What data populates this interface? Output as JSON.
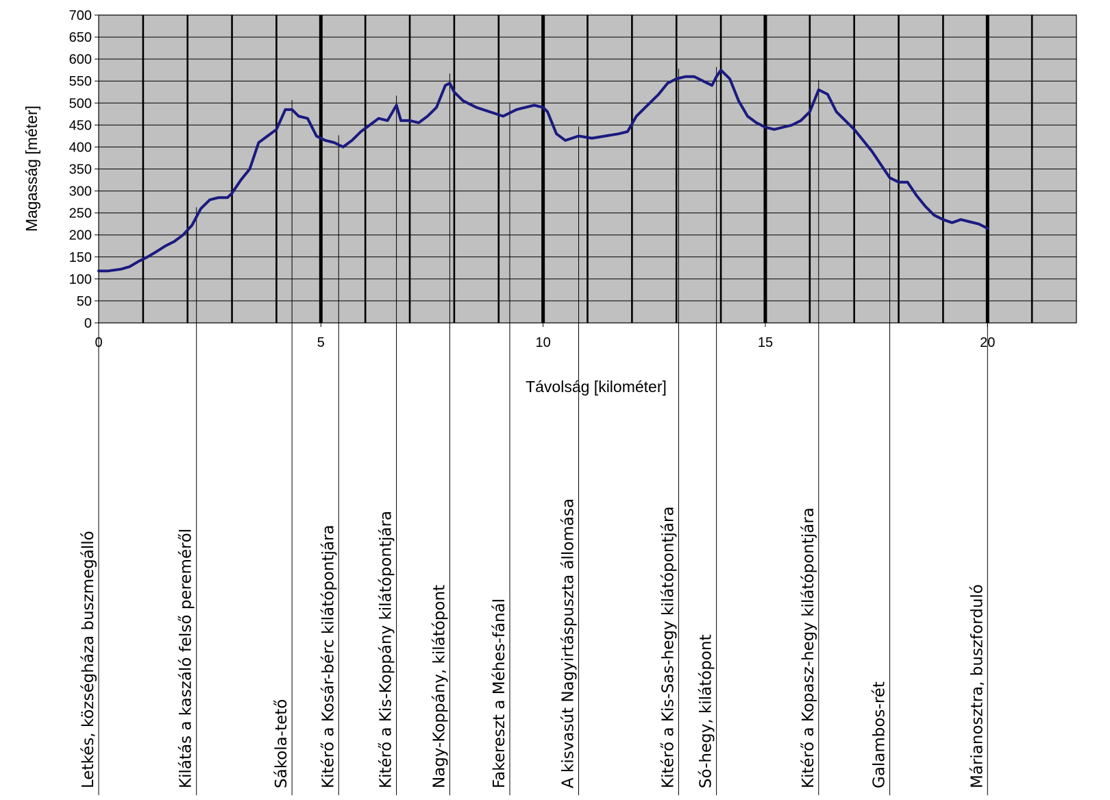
{
  "chart_data": {
    "type": "line",
    "title": "",
    "xlabel": "Távolság [kilométer]",
    "ylabel": "Magasság [méter]",
    "xlim": [
      0,
      22
    ],
    "ylim": [
      0,
      700
    ],
    "grid": true,
    "x_ticks": [
      0,
      5,
      10,
      15,
      20
    ],
    "y_ticks": [
      0,
      50,
      100,
      150,
      200,
      250,
      300,
      350,
      400,
      450,
      500,
      550,
      600,
      650,
      700
    ],
    "vertical_grid_km": [
      1,
      2,
      3,
      4,
      5,
      6,
      7,
      8,
      9,
      10,
      11,
      12,
      13,
      14,
      15,
      16,
      17,
      18,
      19,
      20,
      21
    ],
    "major_grid_km": [
      5,
      10,
      15,
      20
    ],
    "line_color": "#1a1a80",
    "plot_bg": "#c0c0c0",
    "series": [
      {
        "x": [
          0,
          0.2,
          0.5,
          0.7,
          0.9,
          1.1,
          1.3,
          1.5,
          1.7,
          1.9,
          2.1,
          2.3,
          2.5,
          2.7,
          2.9,
          3.0,
          3.2,
          3.4,
          3.6,
          3.8,
          4.0,
          4.2,
          4.35,
          4.5,
          4.7,
          4.9,
          5.1,
          5.3,
          5.5,
          5.7,
          5.9,
          6.1,
          6.3,
          6.5,
          6.7,
          6.8,
          7.0,
          7.2,
          7.4,
          7.6,
          7.8,
          7.9,
          8.0,
          8.2,
          8.5,
          8.8,
          9.1,
          9.4,
          9.6,
          9.8,
          10.0,
          10.1,
          10.3,
          10.5,
          10.8,
          11.1,
          11.4,
          11.7,
          11.9,
          12.1,
          12.3,
          12.6,
          12.8,
          13.0,
          13.2,
          13.4,
          13.6,
          13.8,
          13.9,
          14.0,
          14.2,
          14.4,
          14.6,
          14.8,
          15.0,
          15.2,
          15.4,
          15.6,
          15.8,
          16.0,
          16.2,
          16.4,
          16.6,
          16.8,
          17.0,
          17.2,
          17.4,
          17.6,
          17.8,
          18.0,
          18.2,
          18.4,
          18.6,
          18.8,
          19.0,
          19.2,
          19.4,
          19.6,
          19.8,
          20.0
        ],
        "values": [
          118,
          118,
          122,
          128,
          140,
          150,
          162,
          175,
          185,
          200,
          222,
          260,
          280,
          285,
          285,
          295,
          325,
          350,
          410,
          425,
          440,
          485,
          485,
          470,
          465,
          425,
          415,
          410,
          400,
          415,
          435,
          450,
          465,
          460,
          495,
          460,
          460,
          455,
          470,
          490,
          540,
          545,
          525,
          505,
          490,
          480,
          470,
          485,
          490,
          495,
          490,
          480,
          430,
          415,
          425,
          420,
          425,
          430,
          435,
          470,
          490,
          520,
          545,
          555,
          560,
          560,
          550,
          540,
          560,
          575,
          555,
          505,
          470,
          455,
          445,
          440,
          445,
          450,
          460,
          480,
          530,
          520,
          480,
          460,
          440,
          415,
          390,
          360,
          330,
          320,
          320,
          290,
          265,
          245,
          235,
          228,
          235,
          230,
          225,
          215
        ]
      }
    ],
    "waypoints": [
      {
        "km": 0.0,
        "label": "Letkés, községháza buszmegálló"
      },
      {
        "km": 2.2,
        "label": "Kilátás a kaszáló felső pereméről"
      },
      {
        "km": 4.35,
        "label": "Sákola-tető"
      },
      {
        "km": 5.4,
        "label": "Kitérő a Kosár-bérc kilátópontjára"
      },
      {
        "km": 6.7,
        "label": "Kitérő a Kis-Koppány kilátópontjára"
      },
      {
        "km": 7.9,
        "label": "Nagy-Koppány, kilátópont"
      },
      {
        "km": 9.25,
        "label": "Fakereszt a Méhes-fánál"
      },
      {
        "km": 10.8,
        "label": "A kisvasút Nagyirtáspuszta állomása"
      },
      {
        "km": 13.05,
        "label": "Kitérő a Kis-Sas-hegy kilátópontjára"
      },
      {
        "km": 13.9,
        "label": "Só-hegy, kilátópont"
      },
      {
        "km": 16.2,
        "label": "Kitérő a Kopasz-hegy kilátópontjára"
      },
      {
        "km": 17.8,
        "label": "Galambos-rét"
      },
      {
        "km": 20.0,
        "label": "Márianosztra, buszforduló"
      }
    ]
  }
}
